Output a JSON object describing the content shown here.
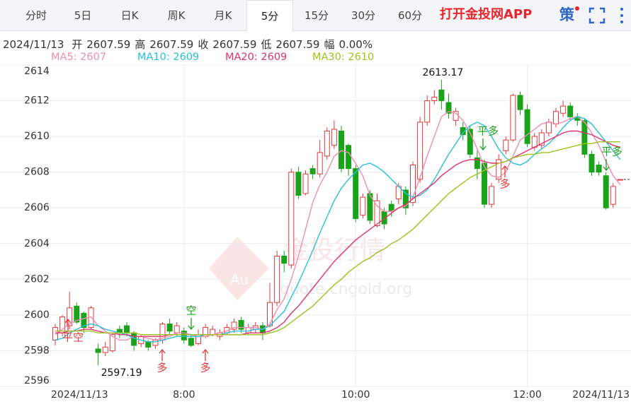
{
  "tabs": [
    "分时",
    "5日",
    "日K",
    "周K",
    "月K",
    "5分",
    "15分",
    "30分",
    "60分"
  ],
  "active_tab": 5,
  "app_link": "打开金投网APP",
  "strategy": "策",
  "info": {
    "date": "2024/11/13",
    "fields": [
      {
        "label": "开",
        "value": "2607.59"
      },
      {
        "label": "高",
        "value": "2607.59"
      },
      {
        "label": "收",
        "value": "2607.59"
      },
      {
        "label": "低",
        "value": "2607.59"
      },
      {
        "label": "幅",
        "value": "0.00%"
      }
    ]
  },
  "watermark": {
    "logo": "Au",
    "text": "金投行情",
    "url": "quote.cngold.org"
  },
  "chart_data": {
    "type": "candlestick",
    "up_color": "#e5383b",
    "down_color": "#1aa31a",
    "ylim": [
      2596,
      2614
    ],
    "yticks": [
      2596,
      2598,
      2600,
      2602,
      2604,
      2606,
      2608,
      2610,
      2612,
      2614
    ],
    "grid": true,
    "categories": [
      "2024/11/13",
      null,
      null,
      null,
      null,
      null,
      null,
      null,
      null,
      null,
      null,
      null,
      null,
      null,
      null,
      null,
      null,
      null,
      "8:00",
      null,
      null,
      null,
      null,
      null,
      null,
      null,
      null,
      null,
      null,
      null,
      null,
      null,
      null,
      null,
      null,
      null,
      null,
      null,
      null,
      null,
      null,
      null,
      "10:00",
      null,
      null,
      null,
      null,
      null,
      null,
      null,
      null,
      null,
      null,
      null,
      null,
      null,
      null,
      null,
      null,
      null,
      null,
      null,
      null,
      null,
      null,
      null,
      "12:00",
      null,
      null,
      null,
      null,
      null,
      null,
      null,
      null,
      null,
      null,
      null,
      null,
      "2024/11/13"
    ],
    "open": [
      2598.6,
      2599.0,
      2599.4,
      2600.5,
      2600.1,
      2599.3,
      2598.1,
      2597.9,
      2598.0,
      2599.2,
      2599.4,
      2599.0,
      2598.4,
      2598.5,
      2598.3,
      2598.6,
      2599.5,
      2599.0,
      2599.1,
      2598.7,
      2598.4,
      2598.8,
      2598.9,
      2598.8,
      2599.0,
      2599.2,
      2599.7,
      2599.0,
      2599.2,
      2599.4,
      2599.4,
      2600.7,
      2603.3,
      2602.8,
      2608.0,
      2606.8,
      2608.2,
      2607.9,
      2608.9,
      2609.5,
      2610.3,
      2609.5,
      2608.2,
      2605.6,
      2606.8,
      2605.0,
      2605.8,
      2606.2,
      2606.5,
      2607.0,
      2606.3,
      2607.6,
      2610.8,
      2612.0,
      2612.6,
      2611.9,
      2610.9,
      2610.5,
      2610.4,
      2608.8,
      2608.5,
      2606.2,
      2607.6,
      2609.2,
      2609.8,
      2612.3,
      2611.5,
      2609.4,
      2609.5,
      2610.2,
      2610.7,
      2611.3,
      2611.7,
      2611.1,
      2610.9,
      2609.0,
      2608.4,
      2607.8,
      2606.2,
      2607.59
    ],
    "high": [
      2599.5,
      2600.0,
      2601.3,
      2600.7,
      2600.2,
      2600.5,
      2598.4,
      2598.5,
      2599.0,
      2599.4,
      2599.6,
      2599.1,
      2598.9,
      2598.6,
      2598.7,
      2599.6,
      2599.8,
      2599.6,
      2599.3,
      2598.9,
      2599.2,
      2599.5,
      2599.4,
      2599.2,
      2599.5,
      2599.8,
      2599.9,
      2599.5,
      2599.6,
      2599.6,
      2601.8,
      2603.6,
      2603.6,
      2608.2,
      2608.3,
      2608.1,
      2608.4,
      2609.8,
      2610.5,
      2610.9,
      2610.6,
      2609.6,
      2608.4,
      2606.8,
      2607.0,
      2606.8,
      2606.0,
      2606.4,
      2607.4,
      2607.2,
      2608.6,
      2611.1,
      2612.3,
      2612.6,
      2613.17,
      2612.4,
      2611.6,
      2610.8,
      2610.6,
      2609.2,
      2608.7,
      2607.4,
      2609.0,
      2610.0,
      2612.4,
      2612.5,
      2611.8,
      2610.2,
      2610.4,
      2611.0,
      2611.6,
      2612.0,
      2611.9,
      2611.3,
      2611.0,
      2609.2,
      2608.6,
      2608.0,
      2607.4,
      2607.59
    ],
    "low": [
      2598.3,
      2598.8,
      2599.2,
      2599.5,
      2599.0,
      2599.2,
      2597.19,
      2597.7,
      2597.9,
      2598.7,
      2598.8,
      2598.0,
      2598.2,
      2598.0,
      2598.1,
      2598.4,
      2598.9,
      2598.8,
      2598.4,
      2598.2,
      2598.3,
      2598.7,
      2598.8,
      2598.6,
      2598.9,
      2599.0,
      2599.0,
      2598.9,
      2599.0,
      2598.6,
      2599.3,
      2600.5,
      2602.4,
      2602.6,
      2606.5,
      2606.7,
      2607.6,
      2607.7,
      2608.7,
      2609.3,
      2608.0,
      2607.8,
      2605.2,
      2605.4,
      2605.1,
      2604.9,
      2604.8,
      2605.5,
      2606.2,
      2605.6,
      2606.1,
      2607.4,
      2610.6,
      2611.8,
      2611.5,
      2611.0,
      2610.6,
      2609.8,
      2608.8,
      2607.6,
      2606.0,
      2606.0,
      2607.4,
      2609.0,
      2609.7,
      2611.2,
      2609.4,
      2609.2,
      2609.3,
      2610.0,
      2610.5,
      2611.1,
      2610.9,
      2610.6,
      2608.8,
      2607.8,
      2607.8,
      2605.9,
      2606.0,
      2607.59
    ],
    "close": [
      2599.3,
      2599.9,
      2600.4,
      2599.6,
      2599.3,
      2600.4,
      2597.9,
      2598.2,
      2598.9,
      2599.0,
      2599.0,
      2598.3,
      2598.8,
      2598.2,
      2598.6,
      2599.5,
      2599.1,
      2599.4,
      2598.6,
      2598.3,
      2598.9,
      2599.3,
      2599.2,
      2599.0,
      2599.3,
      2599.6,
      2599.2,
      2599.3,
      2599.4,
      2599.0,
      2600.7,
      2603.3,
      2602.9,
      2608.0,
      2606.7,
      2607.9,
      2607.9,
      2609.1,
      2610.3,
      2610.4,
      2608.2,
      2608.2,
      2605.4,
      2606.6,
      2605.3,
      2606.4,
      2605.1,
      2605.8,
      2607.2,
      2606.0,
      2608.4,
      2610.8,
      2612.0,
      2612.2,
      2612.0,
      2611.3,
      2611.4,
      2610.1,
      2609.0,
      2608.2,
      2606.2,
      2607.2,
      2608.7,
      2609.8,
      2612.3,
      2611.5,
      2609.6,
      2610.0,
      2610.2,
      2610.8,
      2611.4,
      2611.7,
      2611.1,
      2610.9,
      2609.0,
      2608.0,
      2608.0,
      2606.0,
      2607.2,
      2607.59
    ],
    "series": [
      {
        "name": "MA5: 2607",
        "color": "#f08db0",
        "values": [
          2598.9,
          2599.2,
          2599.5,
          2599.7,
          2599.8,
          2599.9,
          2599.4,
          2599.1,
          2598.8,
          2598.6,
          2598.6,
          2598.8,
          2598.8,
          2598.7,
          2598.6,
          2598.7,
          2598.8,
          2599.0,
          2599.0,
          2598.9,
          2598.8,
          2598.8,
          2598.9,
          2599.0,
          2599.1,
          2599.3,
          2599.3,
          2599.3,
          2599.3,
          2599.2,
          2599.5,
          2600.3,
          2600.9,
          2602.0,
          2603.3,
          2604.8,
          2606.3,
          2607.3,
          2608.0,
          2608.9,
          2609.2,
          2609.1,
          2608.5,
          2607.8,
          2606.7,
          2606.1,
          2605.8,
          2605.8,
          2606.0,
          2606.1,
          2606.6,
          2607.7,
          2608.9,
          2610.0,
          2611.1,
          2611.4,
          2611.3,
          2610.9,
          2610.2,
          2609.3,
          2608.3,
          2607.8,
          2607.7,
          2608.0,
          2608.9,
          2609.8,
          2610.1,
          2610.4,
          2610.7,
          2610.8,
          2610.7,
          2610.8,
          2611.0,
          2611.1,
          2610.8,
          2610.2,
          2609.5,
          2608.6,
          2607.8,
          2607.3
        ]
      },
      {
        "name": "MA10: 2609",
        "color": "#27c1d9",
        "values": [
          2598.6,
          2598.7,
          2599.0,
          2599.2,
          2599.4,
          2599.5,
          2599.4,
          2599.2,
          2599.1,
          2599.0,
          2598.9,
          2598.7,
          2598.6,
          2598.5,
          2598.5,
          2598.6,
          2598.7,
          2598.8,
          2598.8,
          2598.8,
          2598.8,
          2598.9,
          2598.9,
          2598.9,
          2599.0,
          2599.1,
          2599.1,
          2599.1,
          2599.2,
          2599.2,
          2599.4,
          2599.8,
          2600.2,
          2601.0,
          2601.8,
          2602.7,
          2603.6,
          2604.6,
          2605.5,
          2606.4,
          2607.1,
          2607.6,
          2608.0,
          2608.4,
          2608.5,
          2608.3,
          2608.0,
          2607.6,
          2607.2,
          2606.8,
          2606.6,
          2606.7,
          2607.0,
          2607.6,
          2608.3,
          2609.0,
          2609.6,
          2610.2,
          2610.6,
          2610.8,
          2610.6,
          2610.0,
          2609.3,
          2608.8,
          2608.5,
          2608.4,
          2608.6,
          2609.0,
          2609.3,
          2609.6,
          2610.0,
          2610.5,
          2610.9,
          2611.1,
          2611.0,
          2610.7,
          2610.2,
          2609.7,
          2609.2,
          2608.7
        ]
      },
      {
        "name": "MA20: 2609",
        "color": "#e0336c",
        "values": [
          2599.0,
          2599.0,
          2599.1,
          2599.1,
          2599.2,
          2599.2,
          2599.1,
          2599.0,
          2599.0,
          2598.9,
          2598.9,
          2598.8,
          2598.8,
          2598.8,
          2598.8,
          2598.8,
          2598.9,
          2598.9,
          2598.9,
          2598.9,
          2598.9,
          2598.9,
          2598.9,
          2598.9,
          2598.9,
          2598.9,
          2598.9,
          2599.0,
          2599.0,
          2599.0,
          2599.1,
          2599.3,
          2599.6,
          2600.1,
          2600.5,
          2601.0,
          2601.5,
          2602.0,
          2602.5,
          2603.0,
          2603.4,
          2603.8,
          2604.2,
          2604.5,
          2604.8,
          2605.1,
          2605.4,
          2605.7,
          2606.0,
          2606.2,
          2606.5,
          2606.8,
          2607.1,
          2607.4,
          2607.8,
          2608.1,
          2608.4,
          2608.6,
          2608.7,
          2608.7,
          2608.6,
          2608.5,
          2608.5,
          2608.6,
          2608.8,
          2609.0,
          2609.2,
          2609.4,
          2609.6,
          2609.8,
          2610.0,
          2610.2,
          2610.3,
          2610.3,
          2610.2,
          2610.1,
          2609.9,
          2609.7,
          2609.5,
          2609.4
        ]
      },
      {
        "name": "MA30: 2610",
        "color": "#9cc31c",
        "values": [
          2599.1,
          2599.1,
          2599.1,
          2599.1,
          2599.1,
          2599.1,
          2599.0,
          2599.0,
          2599.0,
          2599.0,
          2599.0,
          2599.0,
          2598.9,
          2598.9,
          2598.9,
          2598.9,
          2598.9,
          2598.9,
          2598.9,
          2598.9,
          2598.9,
          2598.9,
          2598.9,
          2598.9,
          2598.9,
          2598.9,
          2598.9,
          2598.9,
          2598.9,
          2598.9,
          2599.0,
          2599.1,
          2599.3,
          2599.6,
          2599.9,
          2600.2,
          2600.5,
          2600.9,
          2601.3,
          2601.7,
          2602.0,
          2602.4,
          2602.7,
          2603.0,
          2603.2,
          2603.5,
          2603.7,
          2604.0,
          2604.2,
          2604.5,
          2604.8,
          2605.2,
          2605.6,
          2606.0,
          2606.4,
          2606.8,
          2607.1,
          2607.4,
          2607.7,
          2607.9,
          2608.1,
          2608.3,
          2608.5,
          2608.6,
          2608.8,
          2608.9,
          2609.0,
          2609.0,
          2609.1,
          2609.1,
          2609.2,
          2609.3,
          2609.4,
          2609.5,
          2609.6,
          2609.6,
          2609.7,
          2609.7,
          2609.7,
          2609.7
        ]
      }
    ],
    "signals": [
      {
        "text": "平空",
        "color": "#e5383b"
      },
      {
        "text": "空",
        "color": "#1aa31a"
      },
      {
        "text": "多",
        "color": "#e5383b"
      },
      {
        "text": "多",
        "color": "#e5383b"
      },
      {
        "text": "平多",
        "color": "#1aa31a"
      },
      {
        "text": "多",
        "color": "#e5383b"
      },
      {
        "text": "平多",
        "color": "#1aa31a"
      }
    ]
  }
}
